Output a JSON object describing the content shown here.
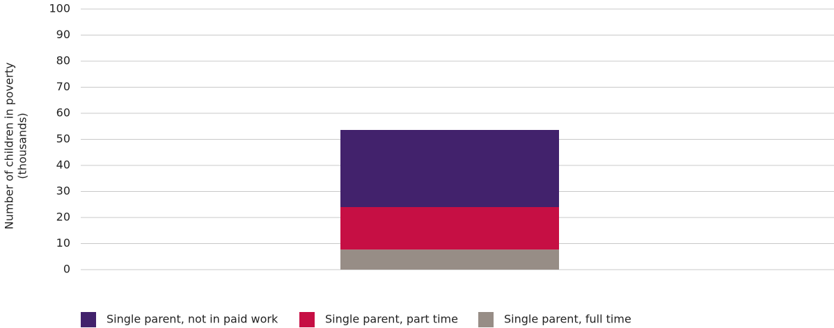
{
  "chart_data": {
    "type": "stacked_bar",
    "ylabel": [
      "Number of children in poverty",
      "(thousands)"
    ],
    "categories": [
      null
    ],
    "series": [
      {
        "name": "Single parent, not in paid work",
        "color": "#42226c",
        "values": [
          29.6
        ]
      },
      {
        "name": "Single parent, part time",
        "color": "#c60f44",
        "values": [
          16.3
        ]
      },
      {
        "name": "Single parent, full time",
        "color": "#978d86",
        "values": [
          7.7
        ]
      }
    ],
    "ylim": [
      0,
      100
    ],
    "yticks": [
      0,
      10,
      20,
      30,
      40,
      50,
      60,
      70,
      80,
      90,
      100
    ],
    "grid": true,
    "legend": "bottom"
  }
}
